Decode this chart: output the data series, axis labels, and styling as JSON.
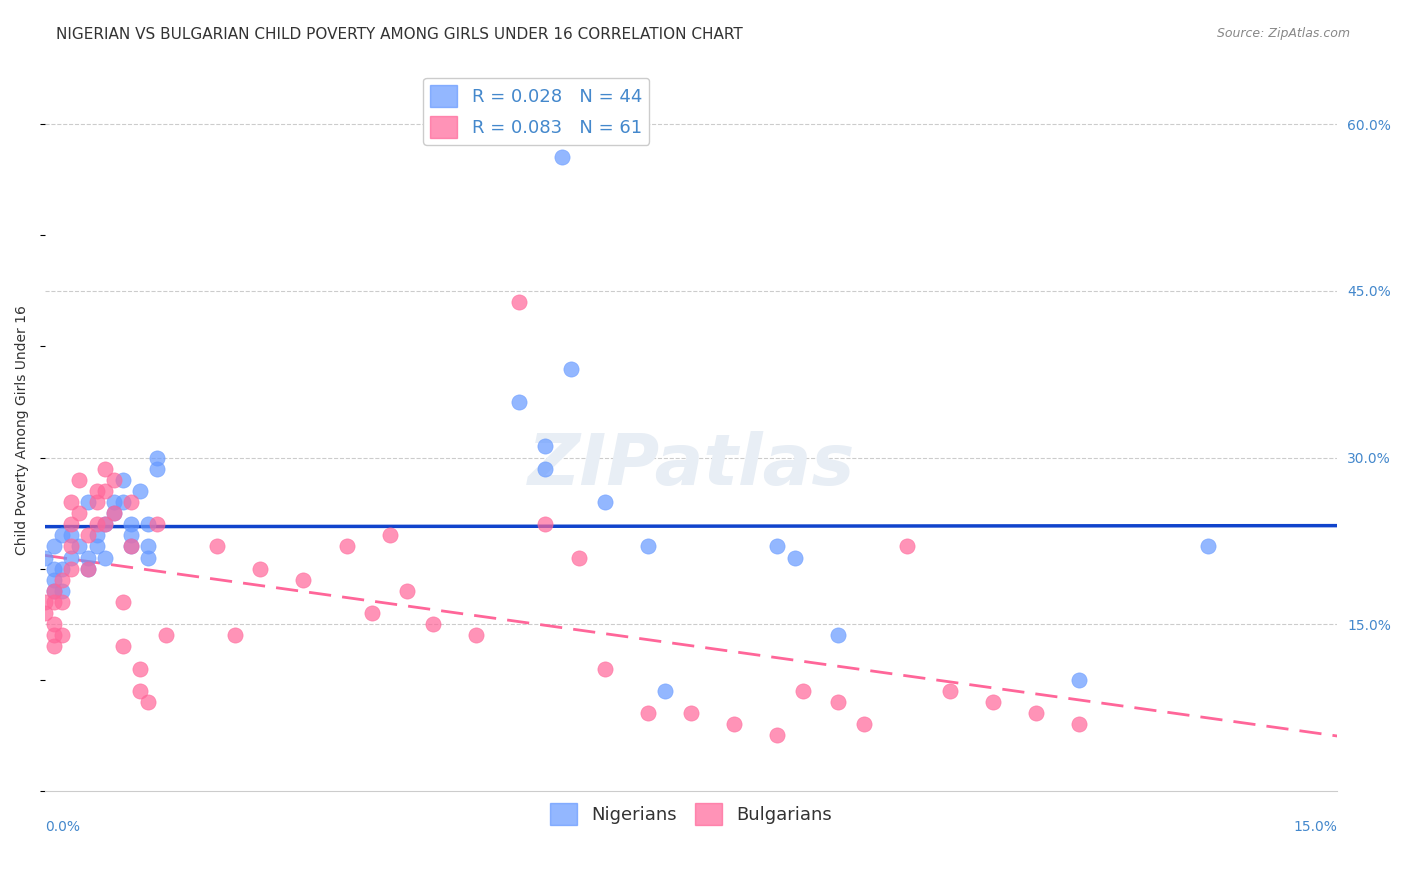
{
  "title": "NIGERIAN VS BULGARIAN CHILD POVERTY AMONG GIRLS UNDER 16 CORRELATION CHART",
  "source": "Source: ZipAtlas.com",
  "ylabel": "Child Poverty Among Girls Under 16",
  "xlim": [
    0.0,
    0.15
  ],
  "ylim": [
    0.0,
    0.65
  ],
  "nigerian_color": "#6699FF",
  "bulgarian_color": "#FF6699",
  "nigerian_line_color": "#1144CC",
  "bulgarian_line_color": "#FF6699",
  "nigerian_R": 0.028,
  "nigerian_N": 44,
  "bulgarian_R": 0.083,
  "bulgarian_N": 61,
  "nigerians_x": [
    0.0,
    0.001,
    0.001,
    0.001,
    0.001,
    0.002,
    0.002,
    0.002,
    0.003,
    0.003,
    0.004,
    0.005,
    0.005,
    0.005,
    0.006,
    0.006,
    0.007,
    0.007,
    0.008,
    0.008,
    0.009,
    0.009,
    0.01,
    0.01,
    0.01,
    0.011,
    0.012,
    0.012,
    0.012,
    0.013,
    0.013,
    0.055,
    0.058,
    0.058,
    0.06,
    0.061,
    0.065,
    0.07,
    0.072,
    0.085,
    0.087,
    0.092,
    0.12,
    0.135
  ],
  "nigerians_y": [
    0.21,
    0.22,
    0.2,
    0.19,
    0.18,
    0.23,
    0.2,
    0.18,
    0.23,
    0.21,
    0.22,
    0.26,
    0.21,
    0.2,
    0.23,
    0.22,
    0.24,
    0.21,
    0.26,
    0.25,
    0.28,
    0.26,
    0.24,
    0.23,
    0.22,
    0.27,
    0.24,
    0.22,
    0.21,
    0.29,
    0.3,
    0.35,
    0.31,
    0.29,
    0.57,
    0.38,
    0.26,
    0.22,
    0.09,
    0.22,
    0.21,
    0.14,
    0.1,
    0.22
  ],
  "bulgarians_x": [
    0.0,
    0.0,
    0.001,
    0.001,
    0.001,
    0.001,
    0.001,
    0.002,
    0.002,
    0.002,
    0.003,
    0.003,
    0.003,
    0.003,
    0.004,
    0.004,
    0.005,
    0.005,
    0.006,
    0.006,
    0.006,
    0.007,
    0.007,
    0.007,
    0.008,
    0.008,
    0.009,
    0.009,
    0.01,
    0.01,
    0.011,
    0.011,
    0.012,
    0.013,
    0.014,
    0.02,
    0.022,
    0.025,
    0.03,
    0.035,
    0.038,
    0.04,
    0.042,
    0.045,
    0.05,
    0.055,
    0.058,
    0.062,
    0.065,
    0.07,
    0.075,
    0.08,
    0.085,
    0.088,
    0.092,
    0.095,
    0.1,
    0.105,
    0.11,
    0.115,
    0.12
  ],
  "bulgarians_y": [
    0.17,
    0.16,
    0.18,
    0.17,
    0.15,
    0.14,
    0.13,
    0.19,
    0.17,
    0.14,
    0.26,
    0.24,
    0.22,
    0.2,
    0.25,
    0.28,
    0.23,
    0.2,
    0.27,
    0.26,
    0.24,
    0.29,
    0.27,
    0.24,
    0.28,
    0.25,
    0.17,
    0.13,
    0.26,
    0.22,
    0.11,
    0.09,
    0.08,
    0.24,
    0.14,
    0.22,
    0.14,
    0.2,
    0.19,
    0.22,
    0.16,
    0.23,
    0.18,
    0.15,
    0.14,
    0.44,
    0.24,
    0.21,
    0.11,
    0.07,
    0.07,
    0.06,
    0.05,
    0.09,
    0.08,
    0.06,
    0.22,
    0.09,
    0.08,
    0.07,
    0.06
  ],
  "watermark": "ZIPatlas",
  "title_fontsize": 11,
  "axis_label_fontsize": 10,
  "tick_fontsize": 10,
  "legend_fontsize": 13,
  "source_fontsize": 9,
  "ytick_vals": [
    0.15,
    0.3,
    0.45,
    0.6
  ],
  "ytick_labels": [
    "15.0%",
    "30.0%",
    "45.0%",
    "60.0%"
  ]
}
